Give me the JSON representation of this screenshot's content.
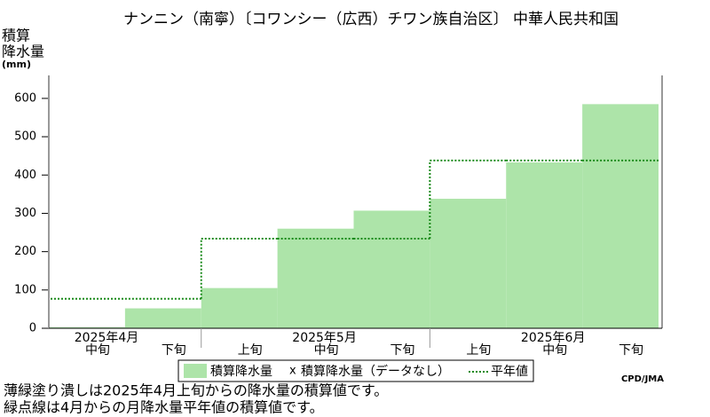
{
  "chart_data": {
    "type": "bar",
    "title": "ナンニン（南寧）〔コワンシー（広西）チワン族自治区〕 中華人民共和国",
    "y_label_lines": [
      "積算",
      "降水量",
      "(mm)"
    ],
    "categories": [
      "中旬",
      "下旬",
      "上旬",
      "中旬",
      "下旬",
      "上旬",
      "中旬",
      "下旬"
    ],
    "months": [
      "2025年4月",
      "2025年5月",
      "2025年6月"
    ],
    "series": [
      {
        "name": "積算降水量",
        "color": "#ade4a9",
        "values": [
          3,
          52,
          105,
          260,
          307,
          338,
          433,
          585
        ]
      },
      {
        "name": "平年値",
        "color": "#1a8a1a",
        "values": [
          77,
          77,
          234,
          234,
          234,
          438,
          438,
          438
        ]
      }
    ],
    "nodata_legend": "積算降水量（データなし）",
    "ylim": [
      0,
      660
    ],
    "yticks": [
      0,
      100,
      200,
      300,
      400,
      500,
      600
    ],
    "credit": "CPD/JMA",
    "notes": [
      "薄緑塗り潰しは2025年4月上旬からの降水量の積算値です。",
      "緑点線は4月からの月降水量平年値の積算値です。"
    ]
  }
}
